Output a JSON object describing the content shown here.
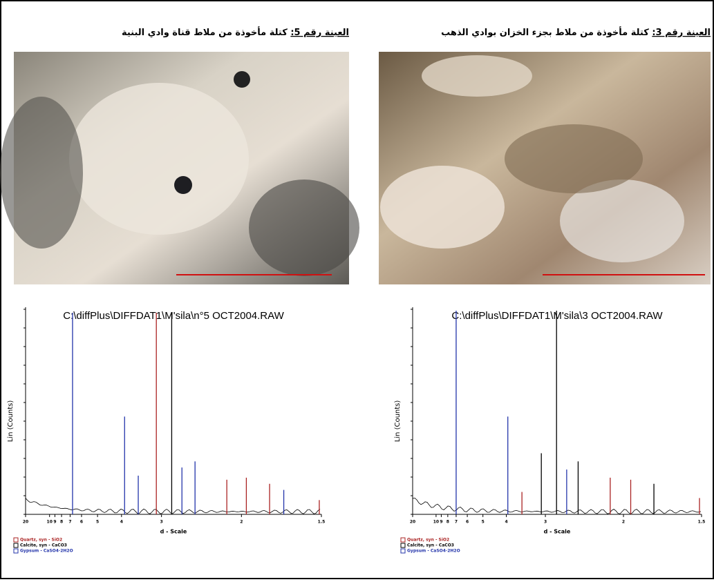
{
  "panels": [
    {
      "caption": {
        "label": "العينة رقم 5:",
        "text": "كتلة مأخوذة من ملاط قناة وادي البنية"
      },
      "chart": {
        "type": "xrd",
        "title": "C:\\diffPlus\\DIFFDAT1\\M'sila\\n°5 OCT2004.RAW",
        "x_label": "d - Scale",
        "y_label": "Lin (Counts)",
        "xlim": [
          20,
          1.5
        ],
        "xticks": [
          20,
          10,
          9,
          8,
          7,
          6,
          5,
          4,
          3,
          2,
          1.5
        ],
        "ylim": [
          0,
          100
        ],
        "peaks": [
          {
            "d": 6.76,
            "height": 99,
            "color": "#2233aa"
          },
          {
            "d": 3.9,
            "height": 48,
            "color": "#2233aa"
          },
          {
            "d": 3.51,
            "height": 19,
            "color": "#2233aa"
          },
          {
            "d": 3.1,
            "height": 99,
            "color": "#aa2222"
          },
          {
            "d": 2.82,
            "height": 99,
            "color": "#000000"
          },
          {
            "d": 2.66,
            "height": 23,
            "color": "#2233aa"
          },
          {
            "d": 2.48,
            "height": 26,
            "color": "#2233aa"
          },
          {
            "d": 2.13,
            "height": 17,
            "color": "#aa2222"
          },
          {
            "d": 1.96,
            "height": 18,
            "color": "#aa2222"
          },
          {
            "d": 1.79,
            "height": 15,
            "color": "#aa2222"
          },
          {
            "d": 1.7,
            "height": 12,
            "color": "#2233aa"
          },
          {
            "d": 1.51,
            "height": 7,
            "color": "#aa2222"
          }
        ],
        "legend": [
          {
            "name": "Quartz, syn - SiO2",
            "color": "#aa2222"
          },
          {
            "name": "Calcite, syn - CaCO3",
            "color": "#000000"
          },
          {
            "name": "Gypsum - CaSO4·2H2O",
            "color": "#2233aa"
          }
        ]
      }
    },
    {
      "caption": {
        "label": "العينة رقم 3:",
        "text": "كتلة مأخوذة من ملاط بجزء الخزان بوادي الذهب"
      },
      "chart": {
        "type": "xrd",
        "title": "C:\\diffPlus\\DIFFDAT1\\M'sila\\3 OCT2004.RAW",
        "x_label": "d - Scale",
        "y_label": "Lin (Counts)",
        "xlim": [
          20,
          1.5
        ],
        "xticks": [
          20,
          10,
          9,
          8,
          7,
          6,
          5,
          4,
          3,
          2,
          1.5
        ],
        "ylim": [
          0,
          100
        ],
        "peaks": [
          {
            "d": 7.0,
            "height": 100,
            "color": "#2233aa"
          },
          {
            "d": 3.95,
            "height": 48,
            "color": "#2233aa"
          },
          {
            "d": 3.53,
            "height": 11,
            "color": "#aa2222"
          },
          {
            "d": 3.08,
            "height": 30,
            "color": "#000000"
          },
          {
            "d": 2.8,
            "height": 100,
            "color": "#000000"
          },
          {
            "d": 2.64,
            "height": 22,
            "color": "#2233aa"
          },
          {
            "d": 2.48,
            "height": 26,
            "color": "#000000"
          },
          {
            "d": 2.12,
            "height": 18,
            "color": "#aa2222"
          },
          {
            "d": 1.94,
            "height": 17,
            "color": "#aa2222"
          },
          {
            "d": 1.77,
            "height": 15,
            "color": "#000000"
          },
          {
            "d": 1.51,
            "height": 8,
            "color": "#aa2222"
          }
        ],
        "legend": [
          {
            "name": "Quartz, syn - SiO2",
            "color": "#aa2222"
          },
          {
            "name": "Calcite, syn - CaCO3",
            "color": "#000000"
          },
          {
            "name": "Gypsum - CaSO4·2H2O",
            "color": "#2233aa"
          }
        ]
      }
    }
  ]
}
